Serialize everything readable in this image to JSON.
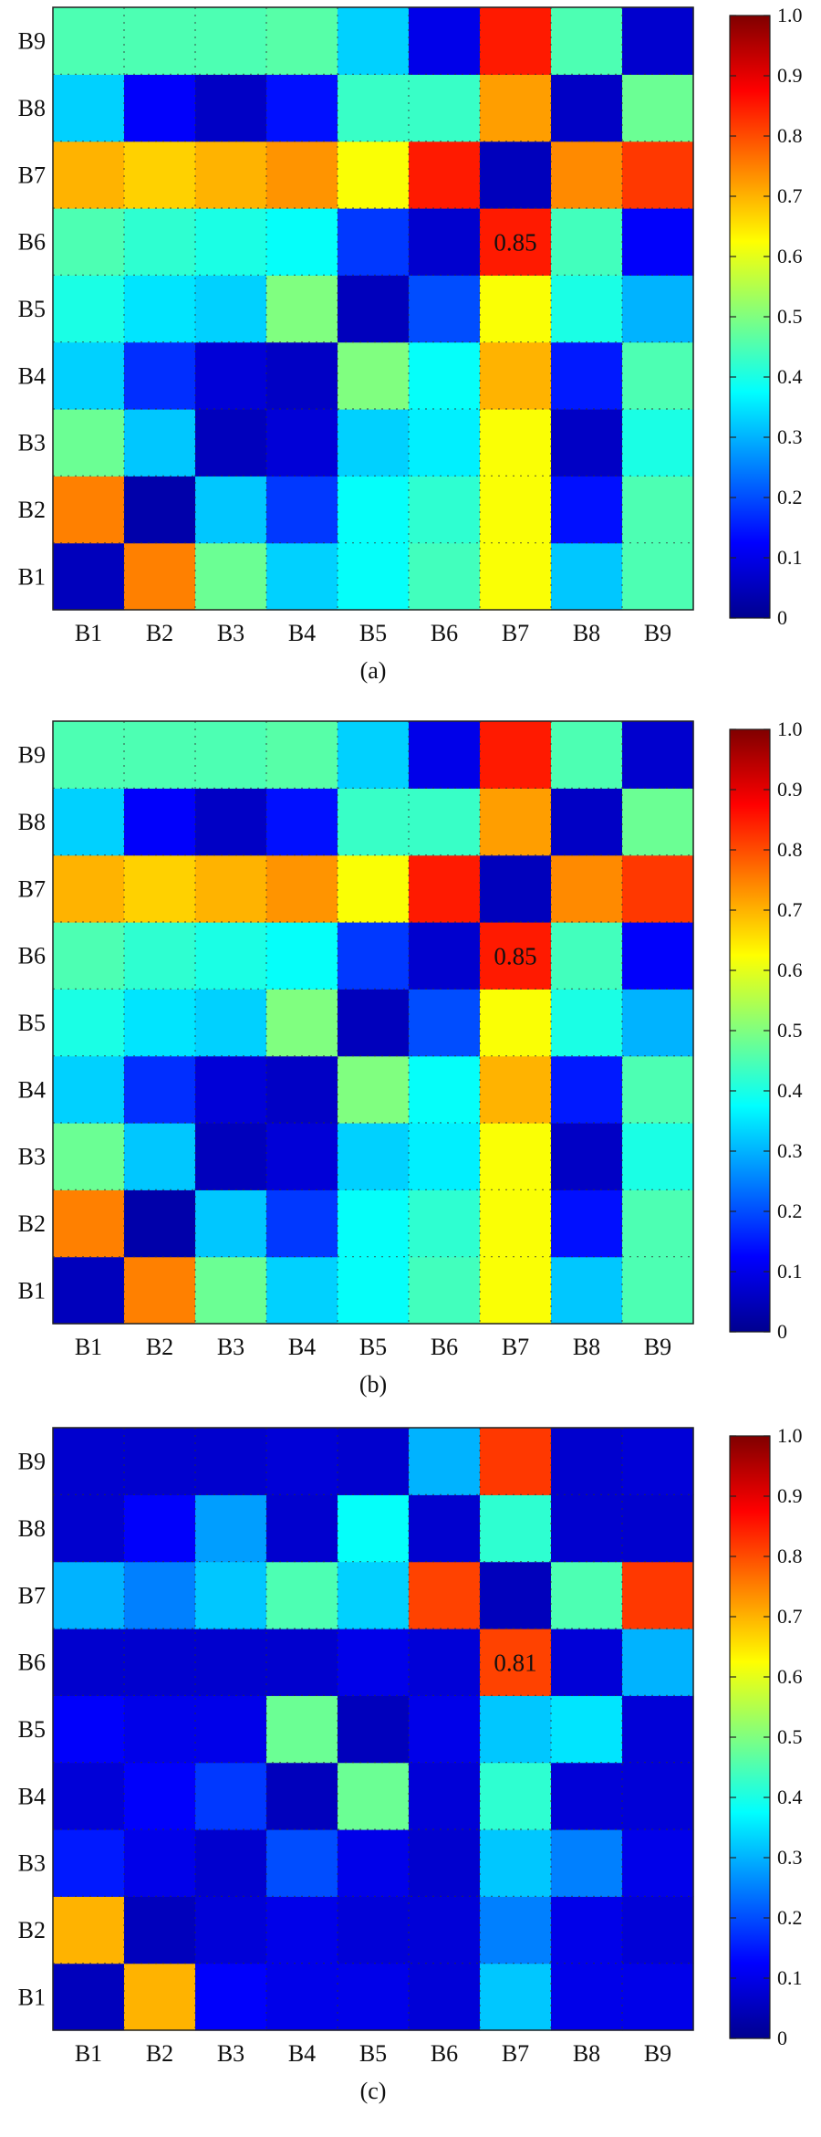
{
  "chart_data": [
    {
      "type": "heatmap",
      "caption": "(a)",
      "x_categories": [
        "B1",
        "B2",
        "B3",
        "B4",
        "B5",
        "B6",
        "B7",
        "B8",
        "B9"
      ],
      "y_categories": [
        "B1",
        "B2",
        "B3",
        "B4",
        "B5",
        "B6",
        "B7",
        "B8",
        "B9"
      ],
      "values": [
        [
          0.05,
          0.75,
          0.48,
          0.33,
          0.38,
          0.44,
          0.62,
          0.32,
          0.45
        ],
        [
          0.75,
          0.03,
          0.32,
          0.18,
          0.38,
          0.42,
          0.62,
          0.14,
          0.45
        ],
        [
          0.48,
          0.32,
          0.05,
          0.08,
          0.33,
          0.36,
          0.62,
          0.06,
          0.4
        ],
        [
          0.33,
          0.17,
          0.08,
          0.06,
          0.5,
          0.38,
          0.7,
          0.15,
          0.45
        ],
        [
          0.4,
          0.35,
          0.33,
          0.5,
          0.05,
          0.2,
          0.62,
          0.4,
          0.3
        ],
        [
          0.45,
          0.42,
          0.4,
          0.38,
          0.18,
          0.07,
          0.85,
          0.44,
          0.12
        ],
        [
          0.7,
          0.67,
          0.7,
          0.73,
          0.62,
          0.85,
          0.05,
          0.74,
          0.82
        ],
        [
          0.33,
          0.12,
          0.06,
          0.14,
          0.43,
          0.43,
          0.72,
          0.06,
          0.48
        ],
        [
          0.45,
          0.45,
          0.45,
          0.46,
          0.33,
          0.1,
          0.85,
          0.45,
          0.07
        ]
      ],
      "annotations": [
        {
          "x": "B7",
          "y": "B6",
          "text": "0.85"
        }
      ],
      "colorbar": {
        "min": 0,
        "max": 1,
        "ticks": [
          "0",
          "0.1",
          "0.2",
          "0.3",
          "0.4",
          "0.5",
          "0.6",
          "0.7",
          "0.8",
          "0.9",
          "1.0"
        ]
      },
      "grid": true
    },
    {
      "type": "heatmap",
      "caption": "(b)",
      "x_categories": [
        "B1",
        "B2",
        "B3",
        "B4",
        "B5",
        "B6",
        "B7",
        "B8",
        "B9"
      ],
      "y_categories": [
        "B1",
        "B2",
        "B3",
        "B4",
        "B5",
        "B6",
        "B7",
        "B8",
        "B9"
      ],
      "values": [
        [
          0.05,
          0.75,
          0.48,
          0.33,
          0.38,
          0.44,
          0.62,
          0.32,
          0.45
        ],
        [
          0.75,
          0.03,
          0.32,
          0.18,
          0.38,
          0.42,
          0.62,
          0.14,
          0.45
        ],
        [
          0.48,
          0.32,
          0.05,
          0.08,
          0.33,
          0.36,
          0.62,
          0.06,
          0.4
        ],
        [
          0.33,
          0.17,
          0.08,
          0.06,
          0.5,
          0.38,
          0.7,
          0.15,
          0.45
        ],
        [
          0.4,
          0.35,
          0.33,
          0.5,
          0.05,
          0.2,
          0.62,
          0.4,
          0.3
        ],
        [
          0.45,
          0.42,
          0.4,
          0.38,
          0.18,
          0.07,
          0.85,
          0.44,
          0.12
        ],
        [
          0.7,
          0.67,
          0.7,
          0.73,
          0.62,
          0.85,
          0.05,
          0.74,
          0.82
        ],
        [
          0.33,
          0.12,
          0.06,
          0.14,
          0.43,
          0.43,
          0.72,
          0.06,
          0.48
        ],
        [
          0.45,
          0.45,
          0.45,
          0.46,
          0.33,
          0.1,
          0.85,
          0.45,
          0.07
        ]
      ],
      "annotations": [
        {
          "x": "B7",
          "y": "B6",
          "text": "0.85"
        }
      ],
      "colorbar": {
        "min": 0,
        "max": 1,
        "ticks": [
          "0",
          "0.1",
          "0.2",
          "0.3",
          "0.4",
          "0.5",
          "0.6",
          "0.7",
          "0.8",
          "0.9",
          "1.0"
        ]
      },
      "grid": true
    },
    {
      "type": "heatmap",
      "caption": "(c)",
      "x_categories": [
        "B1",
        "B2",
        "B3",
        "B4",
        "B5",
        "B6",
        "B7",
        "B8",
        "B9"
      ],
      "y_categories": [
        "B1",
        "B2",
        "B3",
        "B4",
        "B5",
        "B6",
        "B7",
        "B8",
        "B9"
      ],
      "values": [
        [
          0.05,
          0.7,
          0.12,
          0.1,
          0.1,
          0.08,
          0.32,
          0.1,
          0.1
        ],
        [
          0.7,
          0.05,
          0.08,
          0.1,
          0.08,
          0.08,
          0.25,
          0.1,
          0.08
        ],
        [
          0.15,
          0.1,
          0.07,
          0.2,
          0.1,
          0.07,
          0.32,
          0.25,
          0.1
        ],
        [
          0.08,
          0.12,
          0.18,
          0.05,
          0.48,
          0.08,
          0.42,
          0.08,
          0.08
        ],
        [
          0.12,
          0.1,
          0.1,
          0.48,
          0.05,
          0.1,
          0.32,
          0.35,
          0.08
        ],
        [
          0.07,
          0.07,
          0.07,
          0.07,
          0.1,
          0.08,
          0.81,
          0.08,
          0.3
        ],
        [
          0.3,
          0.25,
          0.32,
          0.45,
          0.33,
          0.81,
          0.05,
          0.45,
          0.82
        ],
        [
          0.07,
          0.12,
          0.28,
          0.07,
          0.38,
          0.07,
          0.42,
          0.07,
          0.07
        ],
        [
          0.07,
          0.07,
          0.07,
          0.08,
          0.07,
          0.3,
          0.82,
          0.07,
          0.08
        ]
      ],
      "annotations": [
        {
          "x": "B7",
          "y": "B6",
          "text": "0.81"
        }
      ],
      "colorbar": {
        "min": 0,
        "max": 1,
        "ticks": [
          "0",
          "0.1",
          "0.2",
          "0.3",
          "0.4",
          "0.5",
          "0.6",
          "0.7",
          "0.8",
          "0.9",
          "1.0"
        ]
      },
      "grid": true
    }
  ]
}
